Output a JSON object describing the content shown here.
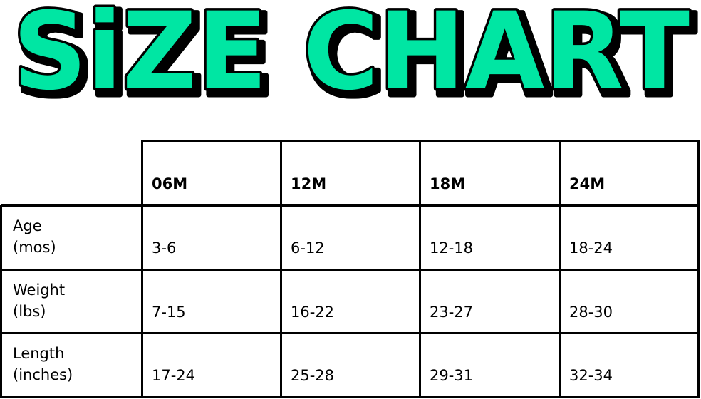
{
  "title": {
    "text": "SiZE CHART",
    "fill_color": "#00e6a3",
    "outline_color": "#000000"
  },
  "table": {
    "columns": [
      "06M",
      "12M",
      "18M",
      "24M"
    ],
    "rows": [
      {
        "label_line1": "Age",
        "label_line2": "(mos)",
        "values": [
          "3-6",
          "6-12",
          "12-18",
          "18-24"
        ]
      },
      {
        "label_line1": "Weight",
        "label_line2": "(lbs)",
        "values": [
          "7-15",
          "16-22",
          "23-27",
          "28-30"
        ]
      },
      {
        "label_line1": "Length",
        "label_line2": "(inches)",
        "values": [
          "17-24",
          "25-28",
          "29-31",
          "32-34"
        ]
      }
    ]
  }
}
